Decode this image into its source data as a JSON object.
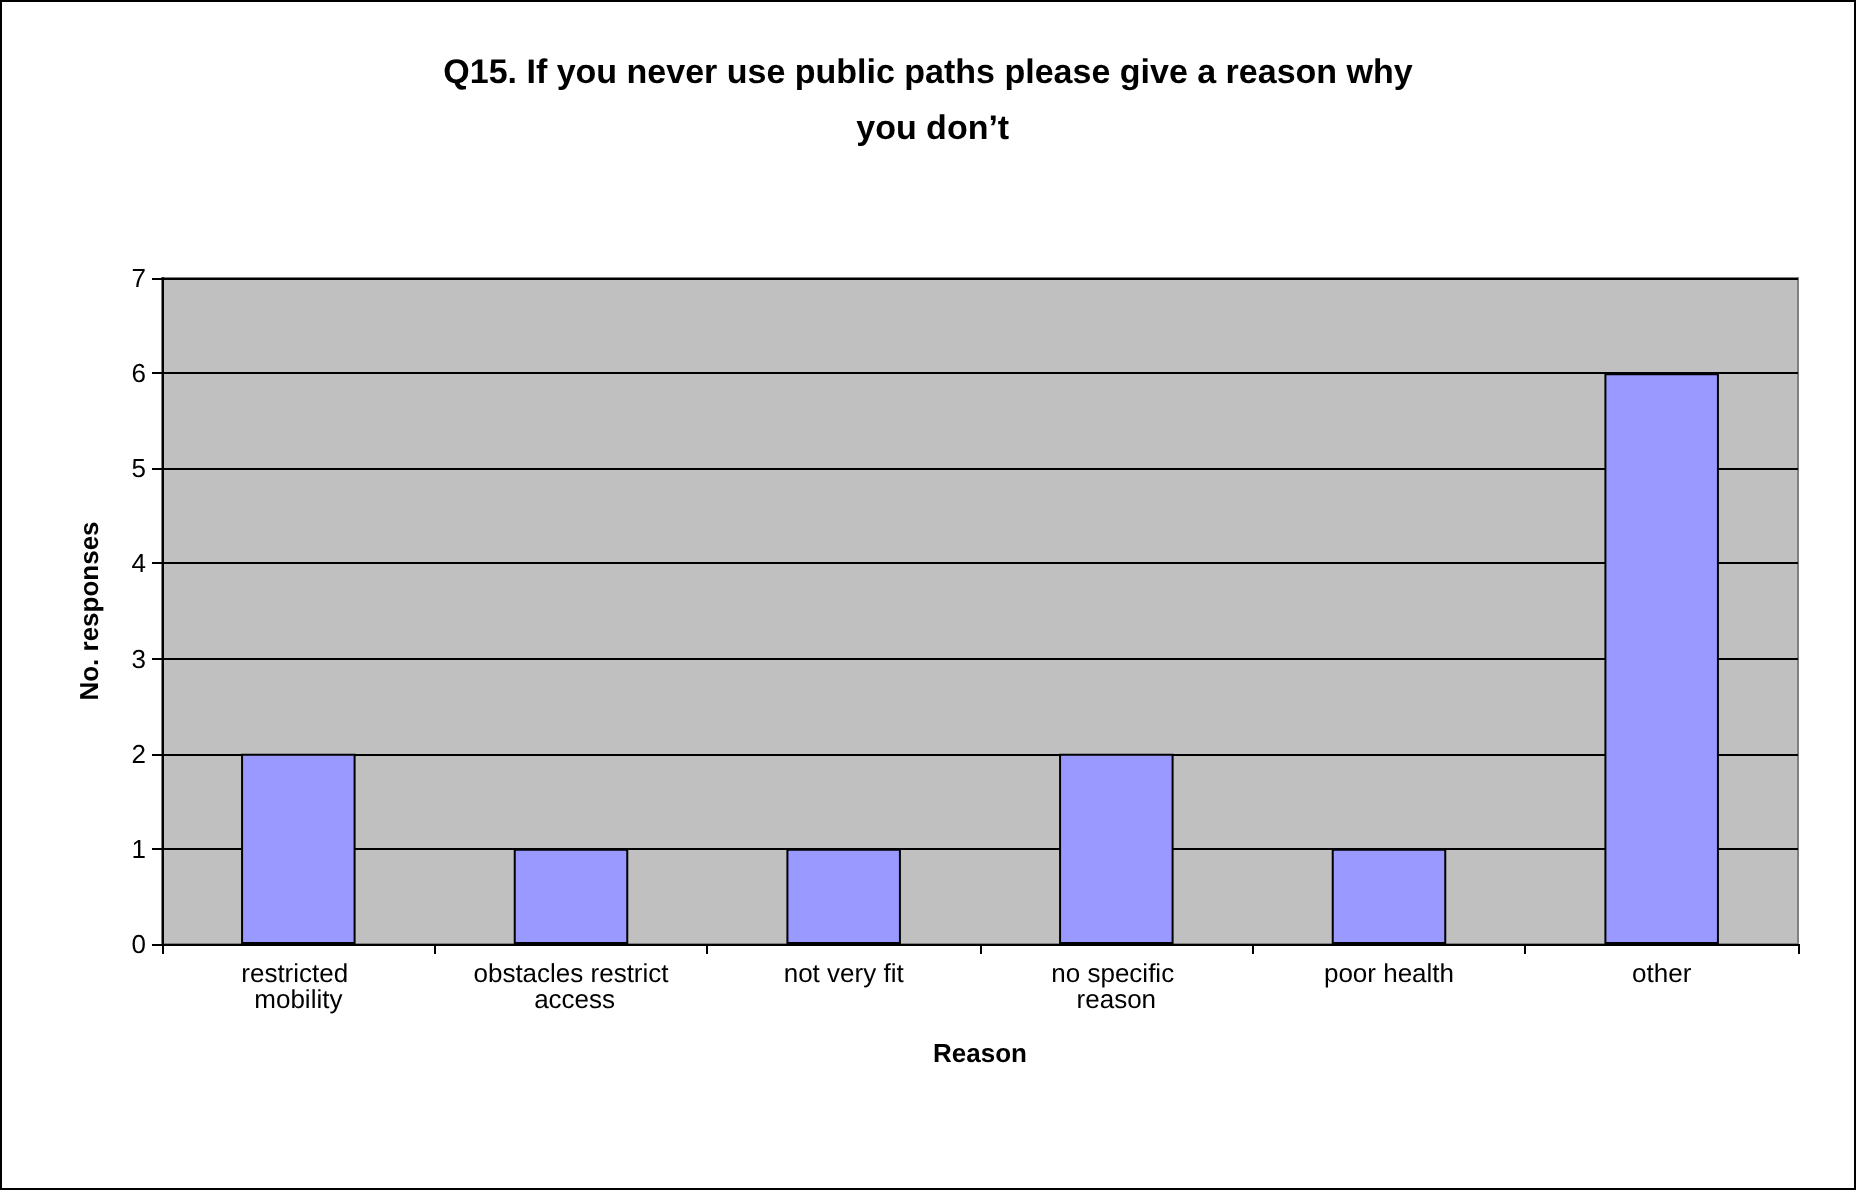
{
  "chart_data": {
    "type": "bar",
    "title": "Q15. If you never use public paths please give a reason why you don’t",
    "xlabel": "Reason",
    "ylabel": "No. responses",
    "categories": [
      "restricted mobility",
      "obstacles restrict access",
      "not very fit",
      "no specific reason",
      "poor health",
      "other"
    ],
    "values": [
      2,
      1,
      1,
      2,
      1,
      6
    ],
    "color": "#9999ff",
    "ylim": [
      0,
      7
    ],
    "yticks": [
      0,
      1,
      2,
      3,
      4,
      5,
      6,
      7
    ],
    "grid": "y"
  }
}
